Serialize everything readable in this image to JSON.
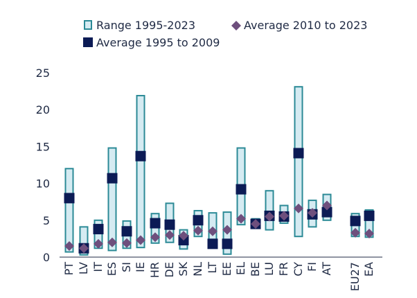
{
  "chart_data": {
    "type": "bar",
    "legend": {
      "range": "Range 1995-2023",
      "avg2010": "Average 2010 to 2023",
      "avg1995": "Average 1995 to 2009"
    },
    "legend_position": "top",
    "ylim": [
      0,
      25
    ],
    "yticks": [
      0,
      5,
      10,
      15,
      20,
      25
    ],
    "grid": false,
    "categories": [
      "PT",
      "LV",
      "IT",
      "ES",
      "SI",
      "IE",
      "HR",
      "DE",
      "SK",
      "NL",
      "LT",
      "EE",
      "EL",
      "BE",
      "LU",
      "FR",
      "CY",
      "FI",
      "AT",
      "EU27",
      "EA"
    ],
    "range_min": [
      0.7,
      0.3,
      1.2,
      0.9,
      1.2,
      1.3,
      1.9,
      2.0,
      1.1,
      2.8,
      1.3,
      0.4,
      4.4,
      3.9,
      3.7,
      4.6,
      2.8,
      4.1,
      5.0,
      2.8,
      2.7
    ],
    "range_max": [
      12.0,
      4.1,
      5.0,
      14.8,
      4.9,
      21.9,
      5.9,
      7.3,
      3.7,
      6.3,
      6.0,
      6.1,
      14.8,
      5.2,
      9.0,
      7.0,
      23.1,
      7.7,
      8.5,
      5.9,
      6.4
    ],
    "series": [
      {
        "name": "Average 1995 to 2009",
        "values": [
          8.0,
          1.2,
          3.8,
          10.7,
          3.5,
          13.7,
          4.6,
          4.4,
          2.3,
          5.0,
          1.8,
          1.8,
          9.2,
          4.5,
          5.6,
          5.5,
          14.1,
          5.8,
          6.1,
          4.9,
          5.6
        ]
      },
      {
        "name": "Average 2010 to 2023",
        "values": [
          1.5,
          1.2,
          1.8,
          2.0,
          1.9,
          2.3,
          2.7,
          3.0,
          2.9,
          3.6,
          3.5,
          3.7,
          5.2,
          4.5,
          5.5,
          5.6,
          6.6,
          6.0,
          7.0,
          3.3,
          3.2
        ]
      }
    ],
    "colors": {
      "range_fill": "#d5ebf2",
      "range_stroke": "#2b8a96",
      "avg1995": "#0c1b55",
      "avg2010": "#6e4f7d",
      "axis": "#1f2a44"
    }
  }
}
